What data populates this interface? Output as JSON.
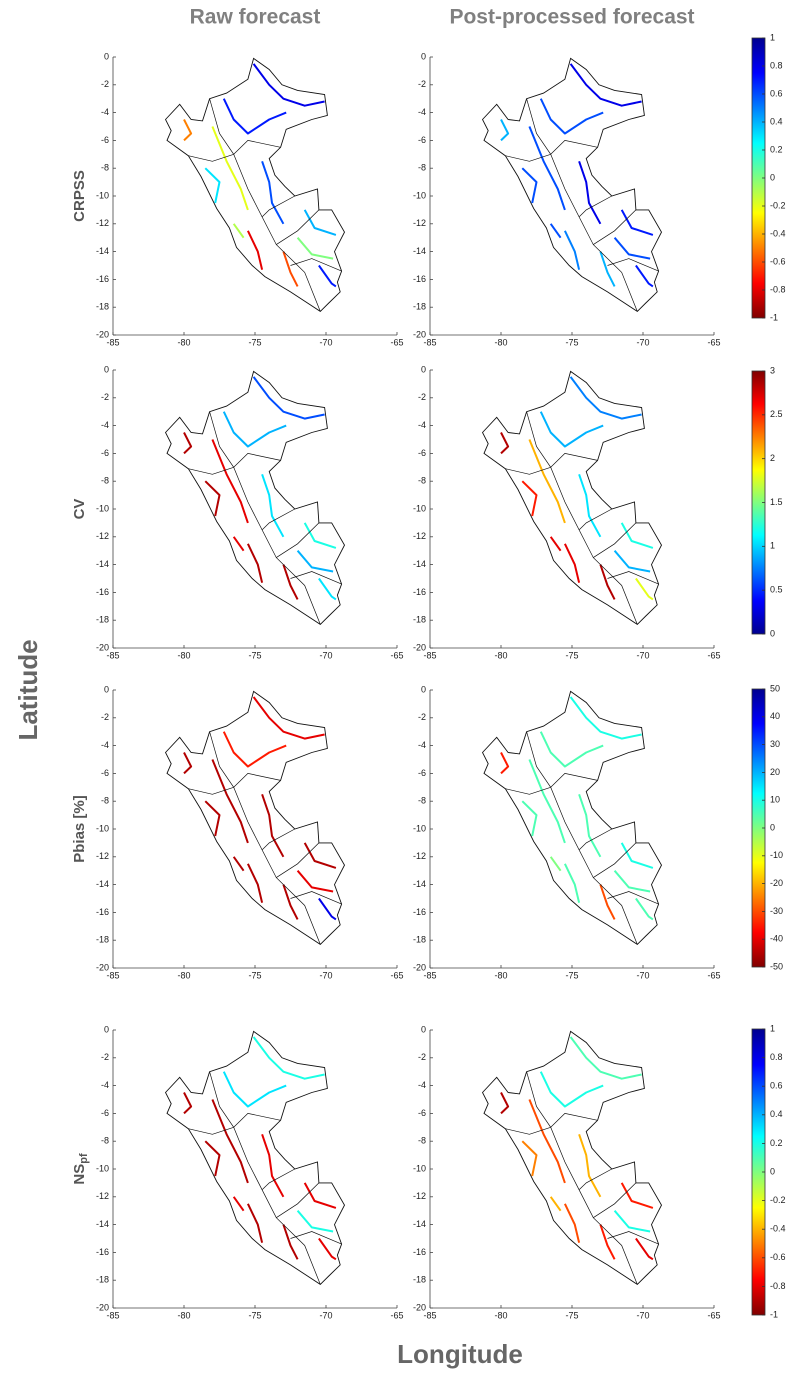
{
  "columns": [
    "Raw forecast",
    "Post-processed forecast"
  ],
  "x_axis_label": "Longitude",
  "y_axis_label": "Latitude",
  "map_axes": {
    "xlim": [
      -85,
      -65
    ],
    "xticks": [
      -85,
      -80,
      -75,
      -70,
      -65
    ],
    "ylim": [
      -20,
      0
    ],
    "yticks": [
      0,
      -2,
      -4,
      -6,
      -8,
      -10,
      -12,
      -14,
      -16,
      -18,
      -20
    ]
  },
  "rows": [
    {
      "label": "CRPSS",
      "colorbar": {
        "colormap": "jet",
        "reversed": true,
        "lim": [
          -1,
          1
        ],
        "ticks": [
          1,
          0.8,
          0.6,
          0.4,
          0.2,
          0,
          -0.2,
          -0.4,
          -0.6,
          -0.8,
          -1
        ]
      }
    },
    {
      "label": "CV",
      "colorbar": {
        "colormap": "jet",
        "reversed": false,
        "lim": [
          0,
          3
        ],
        "ticks": [
          3,
          2.5,
          2,
          1.5,
          1,
          0.5,
          0
        ]
      }
    },
    {
      "label": "Pbias [%]",
      "colorbar": {
        "colormap": "jet",
        "reversed": true,
        "lim": [
          -50,
          50
        ],
        "ticks": [
          50,
          40,
          30,
          20,
          10,
          0,
          -10,
          -20,
          -30,
          -40,
          -50
        ]
      }
    },
    {
      "label": "NS",
      "label_sub": "pf",
      "colorbar": {
        "colormap": "jet",
        "reversed": true,
        "lim": [
          -1,
          1
        ],
        "ticks": [
          1,
          0.8,
          0.6,
          0.4,
          0.2,
          0,
          -0.2,
          -0.4,
          -0.6,
          -0.8,
          -1
        ]
      }
    }
  ]
}
